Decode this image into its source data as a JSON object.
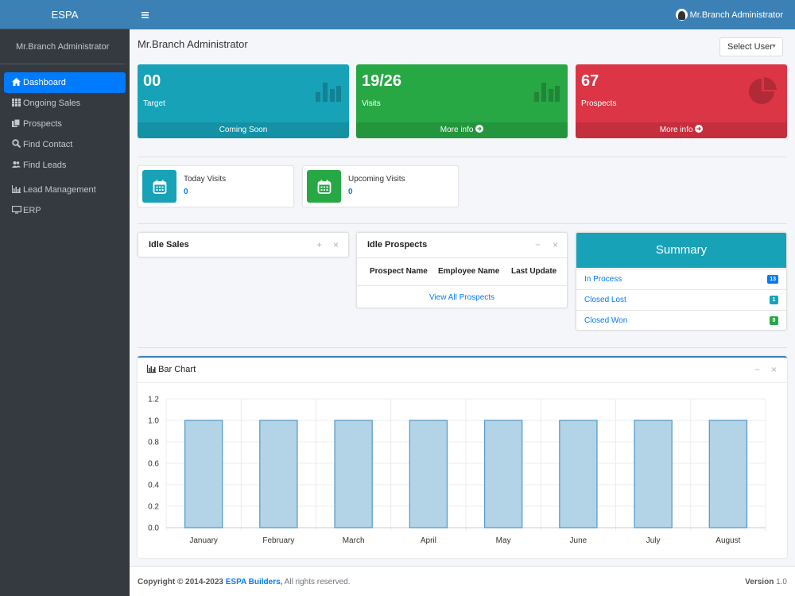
{
  "brand": "ESPA",
  "sidebar": {
    "user": "Mr.Branch Administrator",
    "items": [
      {
        "label": "Dashboard",
        "icon": "home-icon"
      },
      {
        "label": "Ongoing Sales",
        "icon": "grid-icon"
      },
      {
        "label": "Prospects",
        "icon": "copy-icon"
      },
      {
        "label": "Find Contact",
        "icon": "search-icon"
      },
      {
        "label": "Find Leads",
        "icon": "users-icon"
      },
      {
        "label": "Lead Management",
        "icon": "chart-icon"
      },
      {
        "label": "ERP",
        "icon": "desktop-icon"
      }
    ]
  },
  "topbar": {
    "user": "Mr.Branch Administrator"
  },
  "page": {
    "title": "Mr.Branch Administrator",
    "select_user": "Select User"
  },
  "boxes": [
    {
      "value": "00",
      "label": "Target",
      "footer": "Coming Soon",
      "color": "#17a2b8"
    },
    {
      "value": "19/26",
      "label": "Visits",
      "footer": "More info",
      "color": "#28a745"
    },
    {
      "value": "67",
      "label": "Prospects",
      "footer": "More info",
      "color": "#dc3545"
    }
  ],
  "info": [
    {
      "label": "Today Visits",
      "value": "0",
      "color": "#17a2b8"
    },
    {
      "label": "Upcoming Visits",
      "value": "0",
      "color": "#28a745"
    }
  ],
  "idle_sales": {
    "title": "Idle Sales"
  },
  "idle_prospects": {
    "title": "Idle Prospects",
    "columns": [
      "Prospect Name",
      "Employee Name",
      "Last Update"
    ],
    "link": "View All Prospects"
  },
  "summary": {
    "title": "Summary",
    "rows": [
      {
        "label": "In Process",
        "count": "13",
        "color": "#007bff"
      },
      {
        "label": "Closed Lost",
        "count": "1",
        "color": "#17a2b8"
      },
      {
        "label": "Closed Won",
        "count": "0",
        "color": "#28a745"
      }
    ]
  },
  "chart_title": "Bar Chart",
  "chart_data": {
    "type": "bar",
    "categories": [
      "January",
      "February",
      "March",
      "April",
      "May",
      "June",
      "July",
      "August"
    ],
    "values": [
      1,
      1,
      1,
      1,
      1,
      1,
      1,
      1
    ],
    "ylim": [
      0,
      1.2
    ],
    "yticks": [
      "0.0",
      "0.2",
      "0.4",
      "0.6",
      "0.8",
      "1.0",
      "1.2"
    ],
    "bar_color": "#b3d3e6",
    "bar_border": "#5a9ccc",
    "grid": true
  },
  "footer": {
    "copyright": "Copyright © 2014-2023",
    "company": "ESPA Builders,",
    "rights": "All rights reserved.",
    "version_label": "Version",
    "version": "1.0"
  }
}
